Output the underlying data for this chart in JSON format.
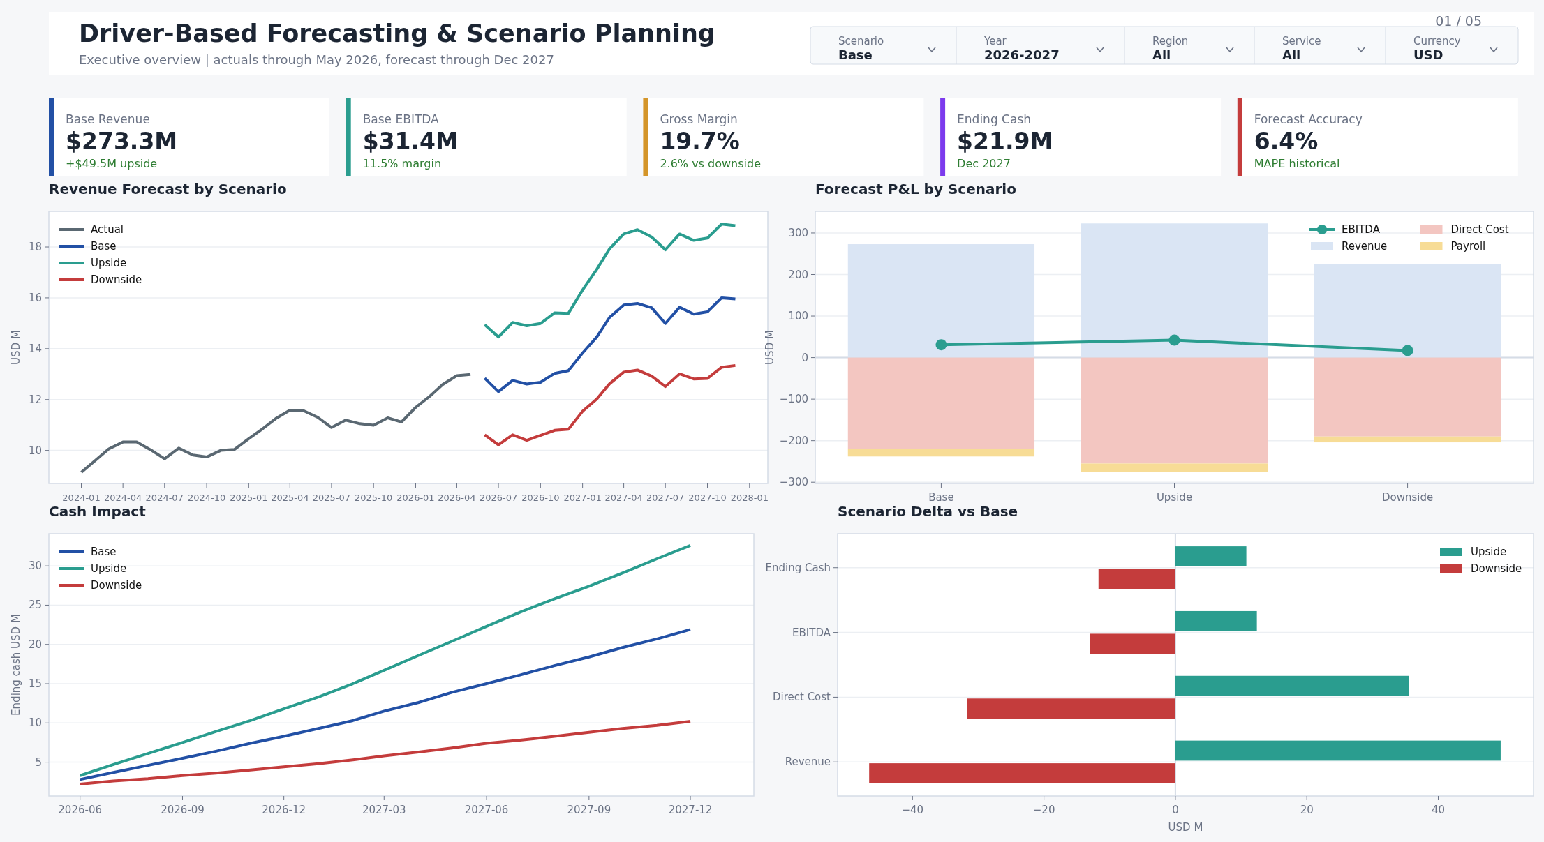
{
  "chart_data": [
    {
      "type": "other",
      "title": "Driver-Based Forecasting & Scenario Planning",
      "subtitle": "Executive overview | actuals through May 2026, forecast through Dec 2027",
      "annotations": [
        "01 / 05"
      ]
    },
    {
      "type": "other",
      "categories": [
        "Scenario",
        "Year",
        "Region",
        "Service",
        "Currency"
      ],
      "annotations": [
        "Base",
        "2026-2027",
        "All",
        "All",
        "USD"
      ]
    },
    {
      "type": "other",
      "title": "Base Revenue",
      "annotations": [
        "$273.3M",
        "+$49.5M upside"
      ],
      "color": "#2250a5"
    },
    {
      "type": "other",
      "title": "Base EBITDA",
      "annotations": [
        "$31.4M",
        "11.5% margin"
      ],
      "color": "#2a9d8f"
    },
    {
      "type": "other",
      "title": "Gross Margin",
      "annotations": [
        "19.7%",
        "2.6% vs downside"
      ],
      "color": "#d4952a"
    },
    {
      "type": "other",
      "title": "Ending Cash",
      "annotations": [
        "$21.9M",
        "Dec 2027"
      ],
      "color": "#7c3aed"
    },
    {
      "type": "other",
      "title": "Forecast Accuracy",
      "annotations": [
        "6.4%",
        "MAPE historical"
      ],
      "color": "#c43c3c"
    },
    {
      "type": "line",
      "title": "Revenue Forecast by Scenario",
      "ylabel": "USD M",
      "xlim": [
        "2023-10-22",
        "2028-02-10"
      ],
      "xticks": [
        "2024-01",
        "2024-04",
        "2024-07",
        "2024-10",
        "2025-01",
        "2025-04",
        "2025-07",
        "2025-10",
        "2026-01",
        "2026-04",
        "2026-07",
        "2026-10",
        "2027-01",
        "2027-04",
        "2027-07",
        "2027-10",
        "2028-01"
      ],
      "ylim": [
        8.7,
        19.4
      ],
      "yticks": [
        10,
        12,
        14,
        16,
        18
      ],
      "grid": "y",
      "legend": "top left",
      "series": [
        {
          "name": "Actual",
          "color": "#5a6872",
          "x": [
            "2024-01",
            "2024-02",
            "2024-03",
            "2024-04",
            "2024-05",
            "2024-06",
            "2024-07",
            "2024-08",
            "2024-09",
            "2024-10",
            "2024-11",
            "2024-12",
            "2025-01",
            "2025-02",
            "2025-03",
            "2025-04",
            "2025-05",
            "2025-06",
            "2025-07",
            "2025-08",
            "2025-09",
            "2025-10",
            "2025-11",
            "2025-12",
            "2026-01",
            "2026-02",
            "2026-03",
            "2026-04",
            "2026-05"
          ],
          "values": [
            9.14,
            9.61,
            10.06,
            10.33,
            10.33,
            10.02,
            9.67,
            10.09,
            9.82,
            9.74,
            10.0,
            10.04,
            10.46,
            10.86,
            11.25,
            11.58,
            11.56,
            11.3,
            10.9,
            11.19,
            11.05,
            10.99,
            11.28,
            11.12,
            11.69,
            12.13,
            12.59,
            12.94,
            12.99
          ]
        },
        {
          "name": "Base",
          "color": "#2250a5",
          "x": [
            "2026-06",
            "2026-07",
            "2026-08",
            "2026-09",
            "2026-10",
            "2026-11",
            "2026-12",
            "2027-01",
            "2027-02",
            "2027-03",
            "2027-04",
            "2027-05",
            "2027-06",
            "2027-07",
            "2027-08",
            "2027-09",
            "2027-10",
            "2027-11",
            "2027-12"
          ],
          "values": [
            12.84,
            12.31,
            12.75,
            12.61,
            12.68,
            13.03,
            13.14,
            13.83,
            14.46,
            15.23,
            15.72,
            15.78,
            15.61,
            14.99,
            15.63,
            15.36,
            15.45,
            16.0,
            15.96
          ]
        },
        {
          "name": "Upside",
          "color": "#2a9d8f",
          "x": [
            "2026-06",
            "2026-07",
            "2026-08",
            "2026-09",
            "2026-10",
            "2026-11",
            "2026-12",
            "2027-01",
            "2027-02",
            "2027-03",
            "2027-04",
            "2027-05",
            "2027-06",
            "2027-07",
            "2027-08",
            "2027-09",
            "2027-10",
            "2027-11",
            "2027-12"
          ],
          "values": [
            14.94,
            14.46,
            15.03,
            14.9,
            14.99,
            15.41,
            15.39,
            16.31,
            17.12,
            17.93,
            18.51,
            18.68,
            18.39,
            17.89,
            18.51,
            18.26,
            18.35,
            18.9,
            18.84
          ]
        },
        {
          "name": "Downside",
          "color": "#c43c3c",
          "x": [
            "2026-06",
            "2026-07",
            "2026-08",
            "2026-09",
            "2026-10",
            "2026-11",
            "2026-12",
            "2027-01",
            "2027-02",
            "2027-03",
            "2027-04",
            "2027-05",
            "2027-06",
            "2027-07",
            "2027-08",
            "2027-09",
            "2027-10",
            "2027-11",
            "2027-12"
          ],
          "values": [
            10.61,
            10.22,
            10.61,
            10.4,
            10.59,
            10.79,
            10.83,
            11.54,
            12.02,
            12.62,
            13.08,
            13.16,
            12.92,
            12.51,
            13.01,
            12.81,
            12.83,
            13.27,
            13.34
          ]
        }
      ]
    },
    {
      "type": "bar",
      "title": "Forecast P&L by Scenario",
      "ylabel": "USD M",
      "categories": [
        "Base",
        "Upside",
        "Downside"
      ],
      "stacked": true,
      "ylim": [
        -303,
        352
      ],
      "yticks": [
        {
          "value": -300,
          "label": "−300"
        },
        {
          "value": -200,
          "label": "−200"
        },
        {
          "value": -100,
          "label": "−100"
        },
        0,
        100,
        200,
        300
      ],
      "grid": "y",
      "legend": "top right",
      "marker": "circle",
      "ref_lines": [
        {
          "axis": "y",
          "value": 0,
          "color": "#d5dce6"
        }
      ],
      "series": [
        {
          "name": "Revenue",
          "color": "#dae5f4",
          "values": [
            273,
            323,
            226
          ]
        },
        {
          "name": "Direct Cost",
          "color": "#f3c6c1",
          "values": [
            -220,
            -255,
            -190
          ]
        },
        {
          "name": "Payroll",
          "color": "#f7dc96",
          "values": [
            -18,
            -20,
            -14
          ]
        },
        {
          "name": "EBITDA",
          "type": "line",
          "color": "#2a9d8f",
          "values": [
            31,
            42,
            17
          ]
        }
      ]
    },
    {
      "type": "line",
      "title": "Cash Impact",
      "ylabel": "Ending cash USD M",
      "x": [
        "2026-06",
        "2026-07",
        "2026-08",
        "2026-09",
        "2026-10",
        "2026-11",
        "2026-12",
        "2027-01",
        "2027-02",
        "2027-03",
        "2027-04",
        "2027-05",
        "2027-06",
        "2027-07",
        "2027-08",
        "2027-09",
        "2027-10",
        "2027-11",
        "2027-12"
      ],
      "xlim": [
        "2026-05-04",
        "2028-01-27"
      ],
      "xticks": [
        "2026-06",
        "2026-09",
        "2026-12",
        "2027-03",
        "2027-06",
        "2027-09",
        "2027-12"
      ],
      "ylim": [
        0.7,
        34.1
      ],
      "yticks": [
        5,
        10,
        15,
        20,
        25,
        30
      ],
      "grid": "y",
      "legend": "top left",
      "series": [
        {
          "name": "Base",
          "color": "#2250a5",
          "values": [
            2.8,
            3.7,
            4.6,
            5.5,
            6.4,
            7.4,
            8.3,
            9.3,
            10.3,
            11.5,
            12.6,
            13.9,
            15.0,
            16.1,
            17.3,
            18.4,
            19.6,
            20.7,
            21.9
          ]
        },
        {
          "name": "Upside",
          "color": "#2a9d8f",
          "values": [
            3.3,
            4.7,
            6.1,
            7.5,
            8.9,
            10.3,
            11.8,
            13.3,
            15.0,
            16.7,
            18.6,
            20.4,
            22.3,
            24.1,
            25.8,
            27.4,
            29.1,
            30.9,
            32.6
          ]
        },
        {
          "name": "Downside",
          "color": "#c43c3c",
          "values": [
            2.2,
            2.6,
            2.9,
            3.3,
            3.6,
            4.0,
            4.4,
            4.8,
            5.3,
            5.8,
            6.3,
            6.8,
            7.4,
            7.8,
            8.3,
            8.8,
            9.3,
            9.7,
            10.2
          ]
        }
      ]
    },
    {
      "type": "bar",
      "orientation": "horizontal",
      "title": "Scenario Delta vs Base",
      "xlabel": "USD M",
      "categories": [
        "Ending Cash",
        "EBITDA",
        "Direct Cost",
        "Revenue"
      ],
      "xlim": [
        -51.4,
        54.5
      ],
      "xticks": [
        {
          "value": -40,
          "label": "−40"
        },
        {
          "value": -20,
          "label": "−20"
        },
        0,
        20,
        40
      ],
      "grid": "y",
      "legend": "top right",
      "ref_lines": [
        {
          "axis": "x",
          "value": 0,
          "color": "#d5dce6"
        }
      ],
      "series": [
        {
          "name": "Upside",
          "color": "#2a9d8f",
          "values": [
            10.8,
            12.4,
            35.5,
            49.5
          ]
        },
        {
          "name": "Downside",
          "color": "#c43c3c",
          "values": [
            -11.7,
            -13.0,
            -31.7,
            -46.6
          ]
        }
      ]
    }
  ]
}
